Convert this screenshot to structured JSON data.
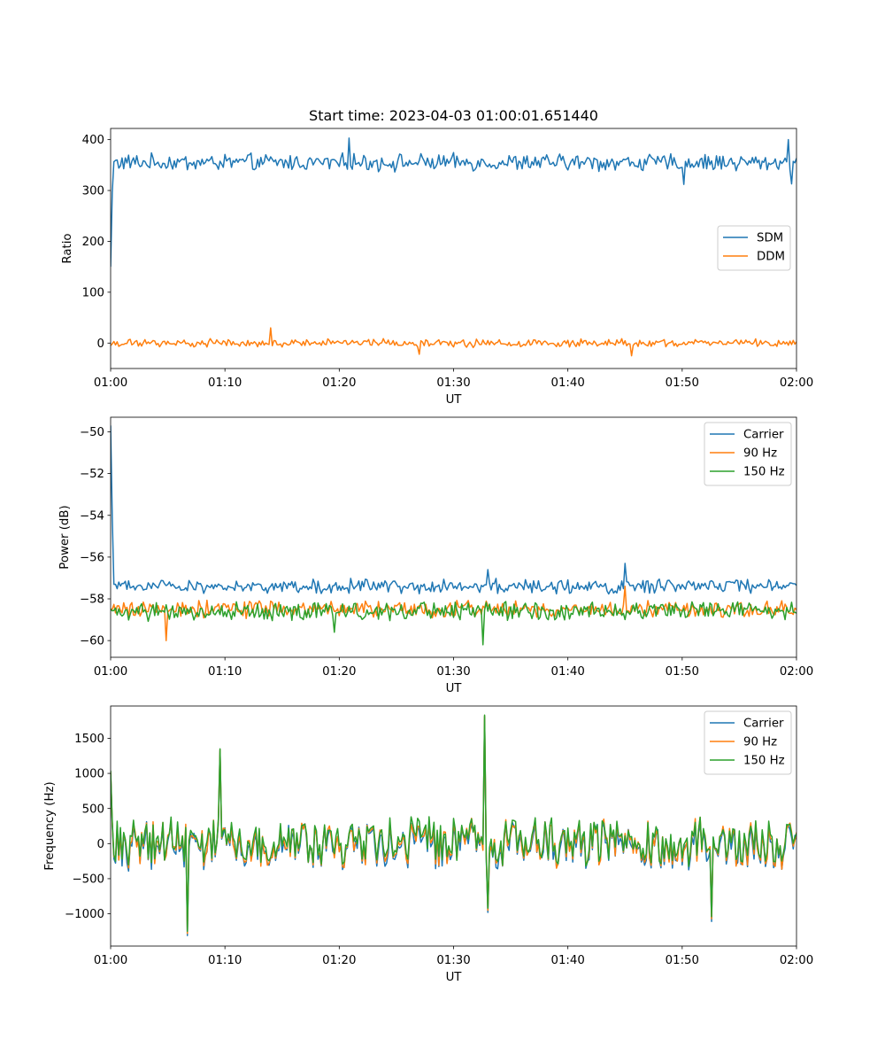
{
  "figure": {
    "title": "Start time: 2023-04-03 01:00:01.651440"
  },
  "colors": {
    "blue": "#1f77b4",
    "orange": "#ff7f0e",
    "green": "#2ca02c"
  },
  "chart_data": [
    {
      "type": "line",
      "title": "Start time: 2023-04-03 01:00:01.651440",
      "xlabel": "UT",
      "ylabel": "Ratio",
      "x_ticks": [
        "01:00",
        "01:10",
        "01:20",
        "01:30",
        "01:40",
        "01:50",
        "02:00"
      ],
      "xlim": [
        "01:00",
        "02:00"
      ],
      "y_ticks": [
        0,
        100,
        200,
        300,
        400
      ],
      "ylim": [
        -50,
        422
      ],
      "grid": false,
      "legend": "center-right",
      "series": [
        {
          "name": "SDM",
          "color": "#1f77b4",
          "start": 150,
          "start_minute": 0,
          "settle_minute": 0.2,
          "mean": 355,
          "amplitude": 17,
          "spikes": [
            [
              20.8,
              403
            ],
            [
              50.2,
              312
            ],
            [
              59.3,
              400
            ],
            [
              59.6,
              313
            ]
          ]
        },
        {
          "name": "DDM",
          "color": "#ff7f0e",
          "start": -5,
          "start_minute": 0,
          "settle_minute": 0.2,
          "mean": 0,
          "amplitude": 8,
          "spikes": [
            [
              14.0,
              30
            ],
            [
              27.0,
              -22
            ],
            [
              45.5,
              -25
            ]
          ]
        }
      ]
    },
    {
      "type": "line",
      "xlabel": "UT",
      "ylabel": "Power (dB)",
      "x_ticks": [
        "01:00",
        "01:10",
        "01:20",
        "01:30",
        "01:40",
        "01:50",
        "02:00"
      ],
      "xlim": [
        "01:00",
        "02:00"
      ],
      "y_ticks": [
        -60,
        -58,
        -56,
        -54,
        -52,
        -50
      ],
      "ylim": [
        -60.8,
        -49.3
      ],
      "grid": false,
      "legend": "top-right",
      "series": [
        {
          "name": "Carrier",
          "color": "#1f77b4",
          "start": -49.7,
          "start_minute": 0,
          "settle_minute": 0.25,
          "mean": -57.4,
          "amplitude": 0.35,
          "spikes": [
            [
              45.0,
              -56.3
            ],
            [
              33.0,
              -56.6
            ]
          ]
        },
        {
          "name": "90 Hz",
          "color": "#ff7f0e",
          "start": -58.5,
          "start_minute": 0,
          "settle_minute": 0.2,
          "mean": -58.5,
          "amplitude": 0.4,
          "spikes": [
            [
              4.8,
              -60.0
            ],
            [
              45.0,
              -57.4
            ]
          ]
        },
        {
          "name": "150 Hz",
          "color": "#2ca02c",
          "start": -58.5,
          "start_minute": 0,
          "settle_minute": 0.2,
          "mean": -58.6,
          "amplitude": 0.45,
          "spikes": [
            [
              32.6,
              -60.2
            ],
            [
              19.5,
              -59.6
            ]
          ]
        }
      ]
    },
    {
      "type": "line",
      "xlabel": "UT",
      "ylabel": "Frequency (Hz)",
      "x_ticks": [
        "01:00",
        "01:10",
        "01:20",
        "01:30",
        "01:40",
        "01:50",
        "02:00"
      ],
      "xlim": [
        "01:00",
        "02:00"
      ],
      "y_ticks": [
        -1000,
        -500,
        0,
        500,
        1000,
        1500
      ],
      "ylim": [
        -1460,
        1960
      ],
      "grid": false,
      "legend": "top-right",
      "series": [
        {
          "name": "Carrier",
          "color": "#1f77b4",
          "start": 1000,
          "start_minute": 0,
          "settle_minute": 0.2,
          "mean": -30,
          "amplitude": 380,
          "spikes": [
            [
              6.7,
              -1310
            ],
            [
              9.6,
              1330
            ],
            [
              32.7,
              1810
            ],
            [
              52.6,
              -1110
            ],
            [
              33.0,
              -980
            ]
          ]
        },
        {
          "name": "90 Hz",
          "color": "#ff7f0e",
          "start": 1020,
          "start_minute": 0,
          "settle_minute": 0.2,
          "mean": 0,
          "amplitude": 380,
          "spikes": [
            [
              6.7,
              -1280
            ],
            [
              9.6,
              1340
            ],
            [
              32.7,
              1820
            ],
            [
              52.6,
              -1070
            ],
            [
              33.0,
              -950
            ]
          ]
        },
        {
          "name": "150 Hz",
          "color": "#2ca02c",
          "start": 1040,
          "start_minute": 0,
          "settle_minute": 0.2,
          "mean": 30,
          "amplitude": 380,
          "spikes": [
            [
              6.7,
              -1250
            ],
            [
              9.6,
              1350
            ],
            [
              32.7,
              1830
            ],
            [
              52.6,
              -1040
            ],
            [
              33.0,
              -920
            ]
          ]
        }
      ]
    }
  ]
}
